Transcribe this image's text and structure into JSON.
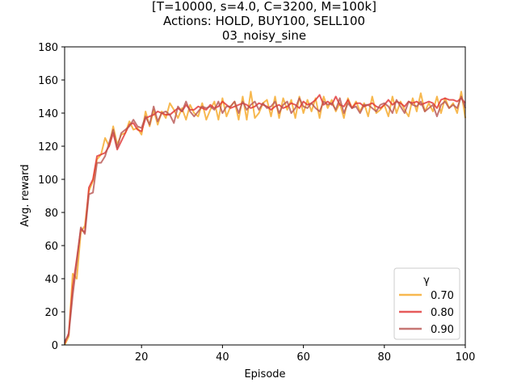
{
  "chart_data": {
    "type": "line",
    "title_lines": [
      "[T=10000, s=4.0, C=3200, M=100k]",
      "Actions: HOLD, BUY100, SELL100",
      "03_noisy_sine"
    ],
    "xlabel": "Episode",
    "ylabel": "Avg. reward",
    "xlim": [
      1,
      100
    ],
    "ylim": [
      0,
      180
    ],
    "xticks": [
      20,
      40,
      60,
      80,
      100
    ],
    "yticks": [
      0,
      20,
      40,
      60,
      80,
      100,
      120,
      140,
      160,
      180
    ],
    "grid": false,
    "legend_title": "γ",
    "legend_position": "lower-right",
    "series": [
      {
        "name": "0.70",
        "color": "#f5a623",
        "values": [
          0,
          5,
          43,
          40,
          68,
          72,
          93,
          99,
          112,
          115,
          125,
          120,
          132,
          121,
          127,
          128,
          135,
          130,
          131,
          127,
          141,
          132,
          142,
          133,
          141,
          137,
          146,
          142,
          137,
          143,
          136,
          145,
          140,
          138,
          146,
          136,
          142,
          147,
          136,
          149,
          138,
          144,
          147,
          136,
          150,
          136,
          153,
          137,
          140,
          146,
          148,
          138,
          150,
          137,
          149,
          142,
          148,
          137,
          150,
          140,
          148,
          141,
          149,
          137,
          150,
          143,
          148,
          141,
          146,
          137,
          149,
          143,
          147,
          141,
          146,
          138,
          150,
          140,
          142,
          145,
          138,
          150,
          140,
          147,
          142,
          138,
          149,
          141,
          152,
          141,
          146,
          141,
          150,
          140,
          149,
          143,
          146,
          140,
          153,
          137
        ]
      },
      {
        "name": "0.80",
        "color": "#e03131",
        "values": [
          1,
          7,
          35,
          52,
          70,
          68,
          95,
          100,
          114,
          115,
          116,
          120,
          128,
          118,
          123,
          128,
          133,
          134,
          130,
          129,
          137,
          138,
          139,
          141,
          140,
          139,
          139,
          141,
          143,
          141,
          145,
          142,
          142,
          144,
          143,
          142,
          145,
          143,
          144,
          147,
          145,
          143,
          144,
          145,
          146,
          145,
          143,
          144,
          146,
          145,
          144,
          142,
          144,
          145,
          143,
          144,
          146,
          145,
          143,
          147,
          145,
          146,
          148,
          151,
          145,
          147,
          145,
          150,
          145,
          144,
          148,
          143,
          146,
          146,
          144,
          145,
          146,
          144,
          143,
          145,
          148,
          145,
          147,
          146,
          144,
          147,
          146,
          147,
          145,
          146,
          147,
          146,
          143,
          148,
          149,
          148,
          148,
          147,
          149,
          146
        ]
      },
      {
        "name": "0.90",
        "color": "#b85450",
        "values": [
          2,
          6,
          30,
          50,
          71,
          67,
          91,
          92,
          110,
          110,
          114,
          122,
          130,
          119,
          128,
          130,
          132,
          136,
          132,
          131,
          138,
          133,
          144,
          135,
          140,
          141,
          139,
          134,
          144,
          141,
          147,
          141,
          138,
          141,
          144,
          143,
          144,
          142,
          147,
          140,
          144,
          144,
          147,
          140,
          147,
          142,
          145,
          147,
          142,
          146,
          143,
          144,
          147,
          140,
          145,
          147,
          140,
          143,
          149,
          144,
          143,
          146,
          143,
          141,
          147,
          145,
          146,
          142,
          149,
          140,
          146,
          143,
          144,
          140,
          145,
          145,
          143,
          141,
          145,
          146,
          144,
          140,
          148,
          144,
          140,
          147,
          145,
          144,
          147,
          141,
          143,
          145,
          138,
          145,
          147,
          143,
          145,
          143,
          150,
          143
        ]
      }
    ]
  }
}
